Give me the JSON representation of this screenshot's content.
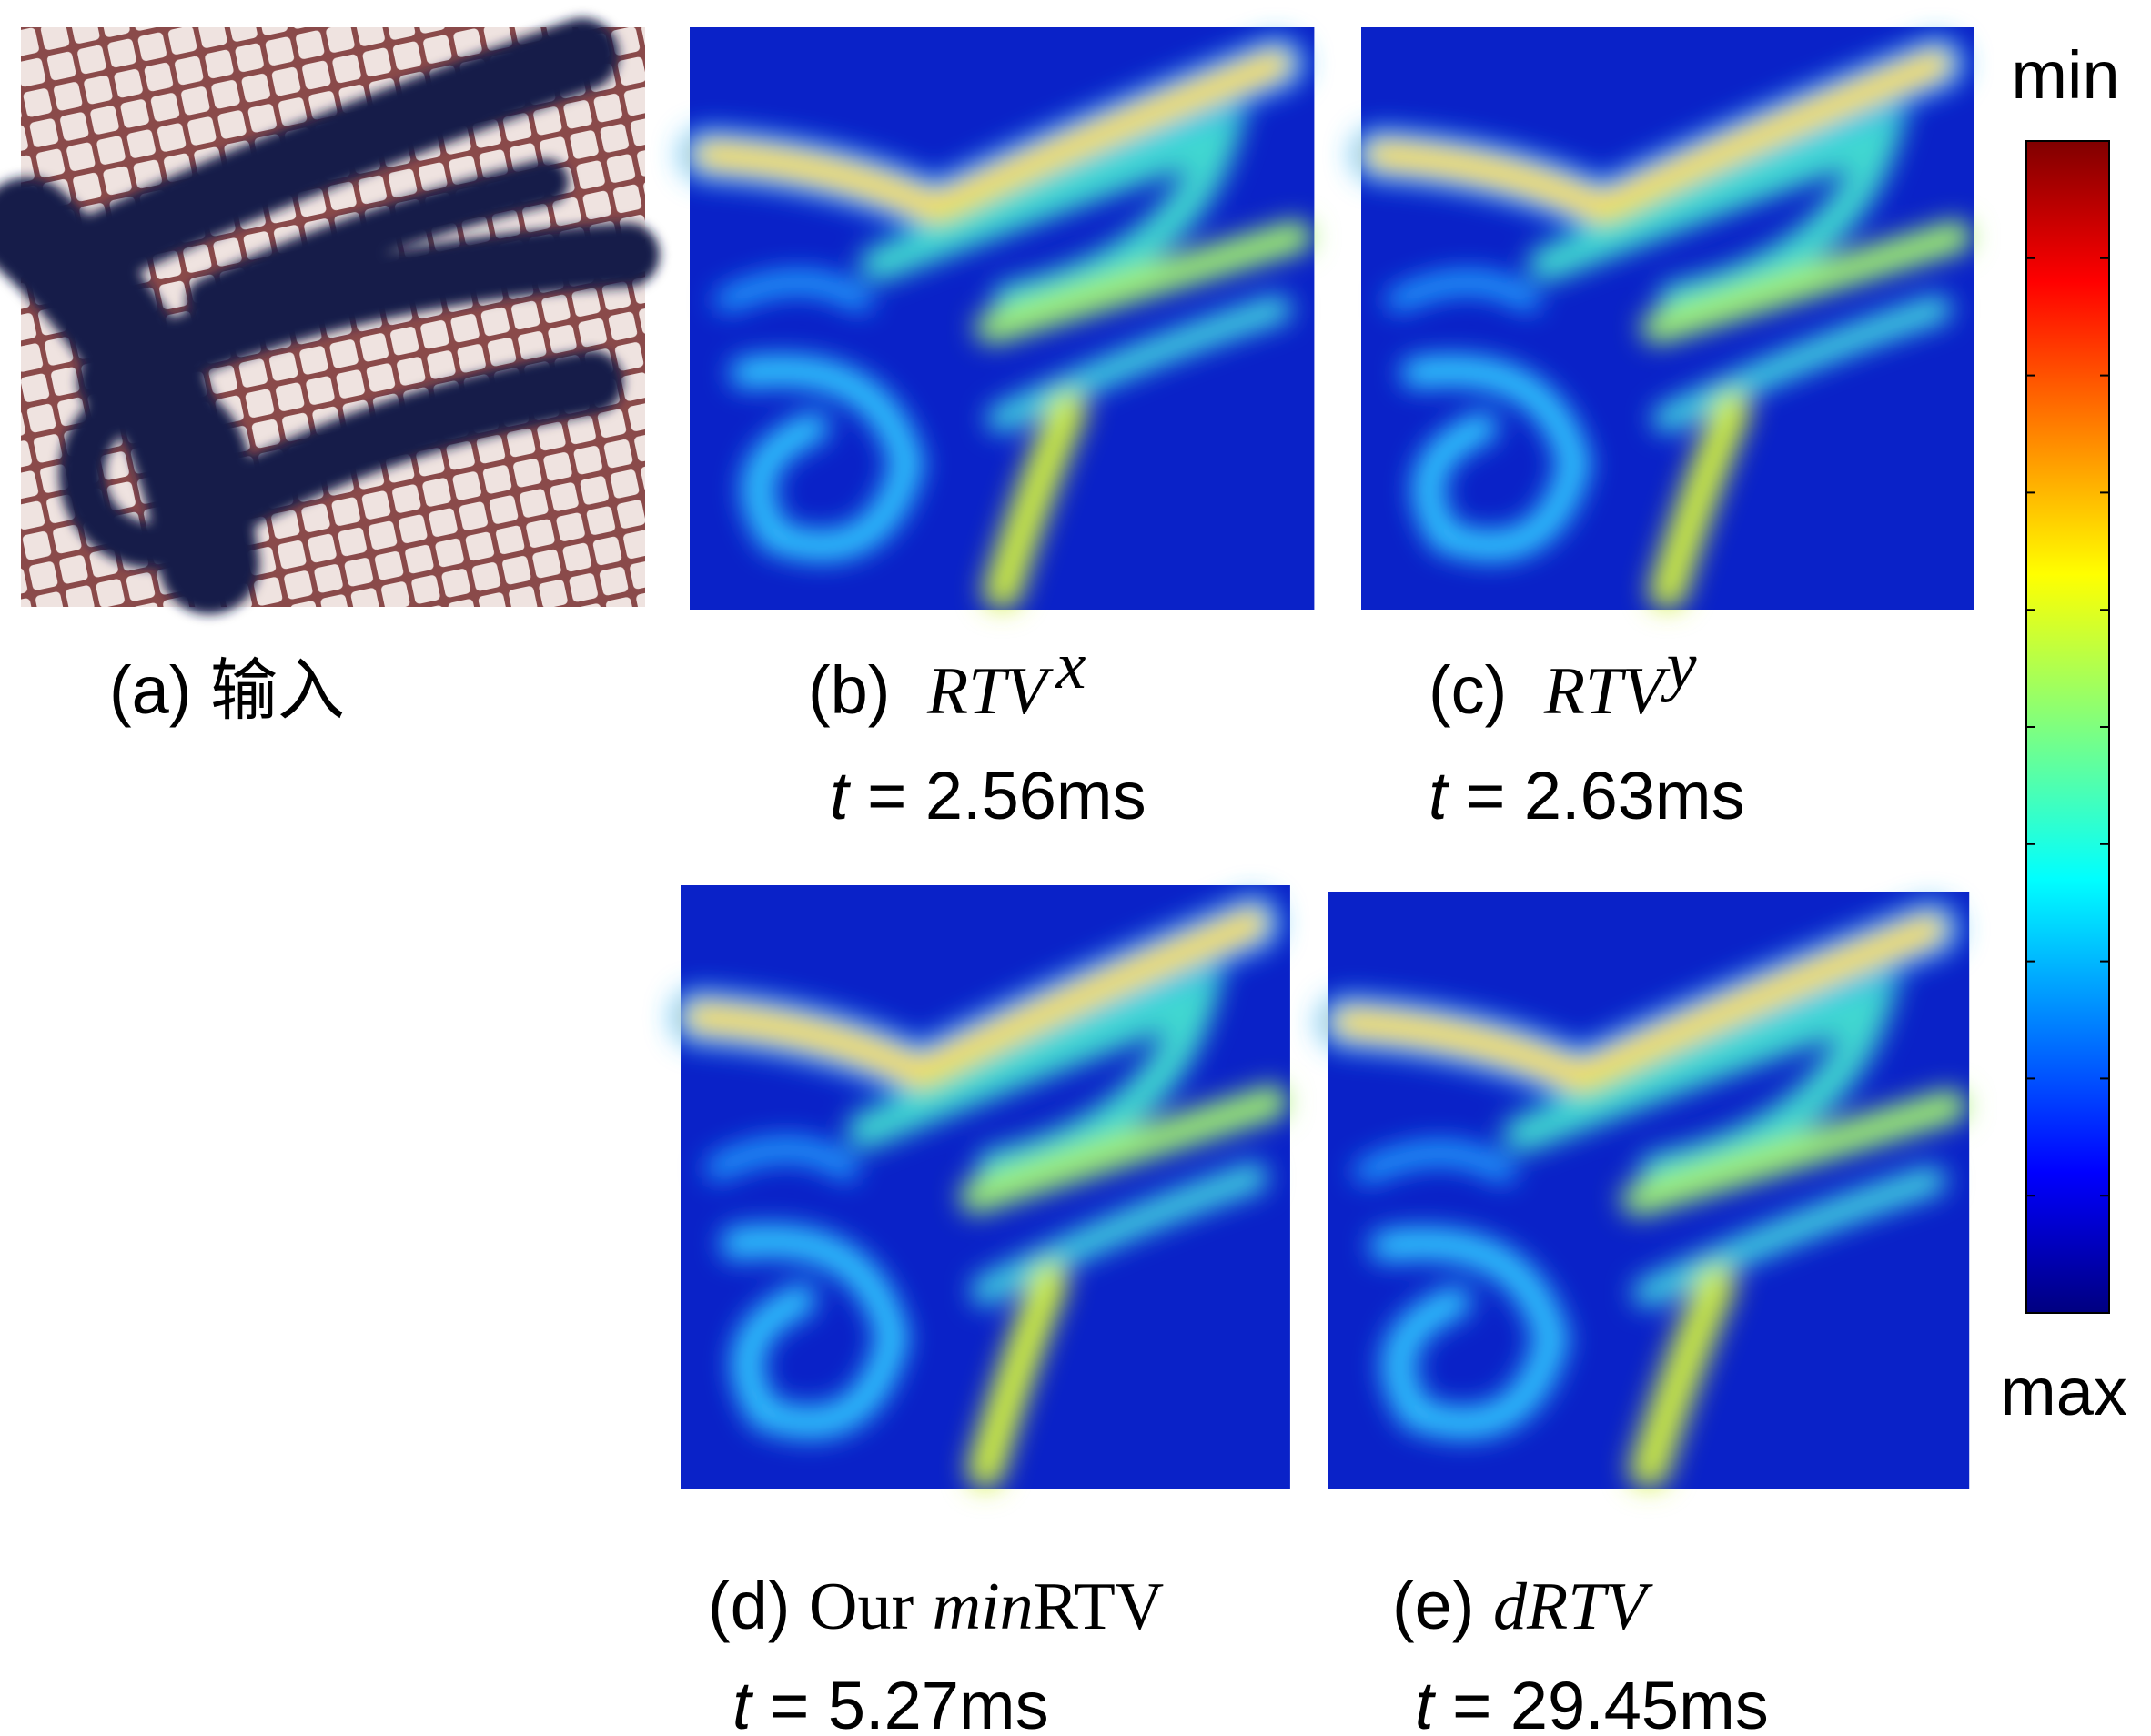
{
  "panels": [
    {
      "id": "(a)",
      "caption": "输入"
    },
    {
      "id": "(b)",
      "method": "RTV",
      "superscript": "x",
      "time_symbol": "t",
      "time": "= 2.56ms"
    },
    {
      "id": "(c)",
      "method": "RTV",
      "superscript": "y",
      "time_symbol": "t",
      "time": "= 2.63ms"
    },
    {
      "id": "(d)",
      "prefix": "Our",
      "method": "min",
      "suffix": "RTV",
      "time_symbol": "t",
      "time": "= 5.27ms"
    },
    {
      "id": "(e)",
      "method": "dRTV",
      "time_symbol": "t",
      "time": "= 29.45ms"
    }
  ],
  "colorbar": {
    "top_label": "min",
    "bottom_label": "max"
  }
}
